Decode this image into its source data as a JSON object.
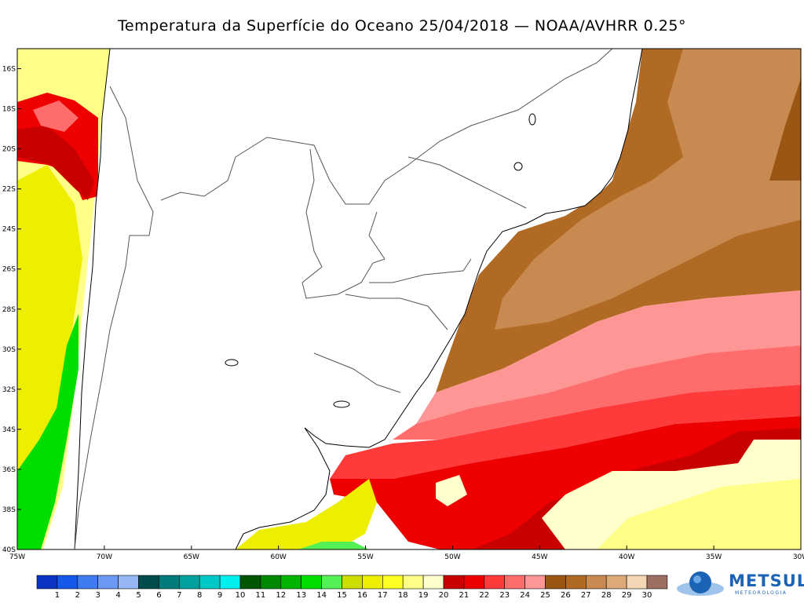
{
  "title": "Temperatura da Superfície do Oceano 25/04/2018 — NOAA/AVHRR 0.25°",
  "map": {
    "lon_range": [
      -75,
      -30
    ],
    "lat_range": [
      -40,
      -15
    ],
    "lat_labels": [
      "16S",
      "18S",
      "20S",
      "22S",
      "24S",
      "26S",
      "28S",
      "30S",
      "32S",
      "34S",
      "36S",
      "38S",
      "40S"
    ],
    "lon_labels": [
      "75W",
      "70W",
      "65W",
      "60W",
      "55W",
      "50W",
      "45W",
      "40W",
      "35W",
      "30W"
    ]
  },
  "legend": {
    "labels": [
      "1",
      "2",
      "3",
      "4",
      "5",
      "6",
      "7",
      "8",
      "9",
      "10",
      "11",
      "12",
      "13",
      "14",
      "15",
      "16",
      "17",
      "18",
      "19",
      "20",
      "21",
      "22",
      "23",
      "24",
      "25",
      "26",
      "27",
      "28",
      "29",
      "30"
    ],
    "colors": [
      "#0b34c2",
      "#1557e8",
      "#3f7cf0",
      "#6a98f3",
      "#95b6f5",
      "#004c4c",
      "#007a7a",
      "#00a09e",
      "#00c8c8",
      "#00f0f0",
      "#005500",
      "#008800",
      "#00b400",
      "#00de00",
      "#55f055",
      "#ccdd00",
      "#eeee00",
      "#ffff22",
      "#ffff88",
      "#ffffcc",
      "#c80000",
      "#ee0000",
      "#ff3a3a",
      "#ff6c6c",
      "#ff9696",
      "#9a5612",
      "#b06a24",
      "#c88a50",
      "#dcaa78",
      "#f4d7b4",
      "#9c6f62"
    ]
  },
  "logo": {
    "name": "METSUL",
    "sub": "METEOROLOGIA"
  }
}
